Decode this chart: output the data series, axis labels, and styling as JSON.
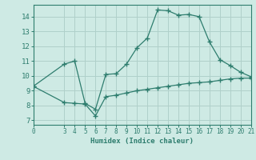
{
  "line1_x": [
    0,
    3,
    4,
    5,
    6,
    7,
    8,
    9,
    10,
    11,
    12,
    13,
    14,
    15,
    16,
    17,
    18,
    19,
    20,
    21
  ],
  "line1_y": [
    9.3,
    10.8,
    11.0,
    8.15,
    7.75,
    10.1,
    10.15,
    10.8,
    11.9,
    12.55,
    14.45,
    14.4,
    14.1,
    14.15,
    14.0,
    12.3,
    11.1,
    10.7,
    10.25,
    9.95
  ],
  "line2_x": [
    0,
    3,
    4,
    5,
    6,
    7,
    8,
    9,
    10,
    11,
    12,
    13,
    14,
    15,
    16,
    17,
    18,
    19,
    20,
    21
  ],
  "line2_y": [
    9.3,
    8.2,
    8.15,
    8.1,
    7.3,
    8.6,
    8.7,
    8.85,
    9.0,
    9.1,
    9.2,
    9.3,
    9.4,
    9.5,
    9.55,
    9.6,
    9.7,
    9.8,
    9.85,
    9.85
  ],
  "color": "#2e7d6e",
  "bg_color": "#ceeae4",
  "grid_color": "#b0d0ca",
  "xlabel": "Humidex (Indice chaleur)",
  "xlim": [
    0,
    21
  ],
  "ylim": [
    6.7,
    14.8
  ],
  "yticks": [
    7,
    8,
    9,
    10,
    11,
    12,
    13,
    14
  ],
  "xticks": [
    0,
    3,
    4,
    5,
    6,
    7,
    8,
    9,
    10,
    11,
    12,
    13,
    14,
    15,
    16,
    17,
    18,
    19,
    20,
    21
  ]
}
